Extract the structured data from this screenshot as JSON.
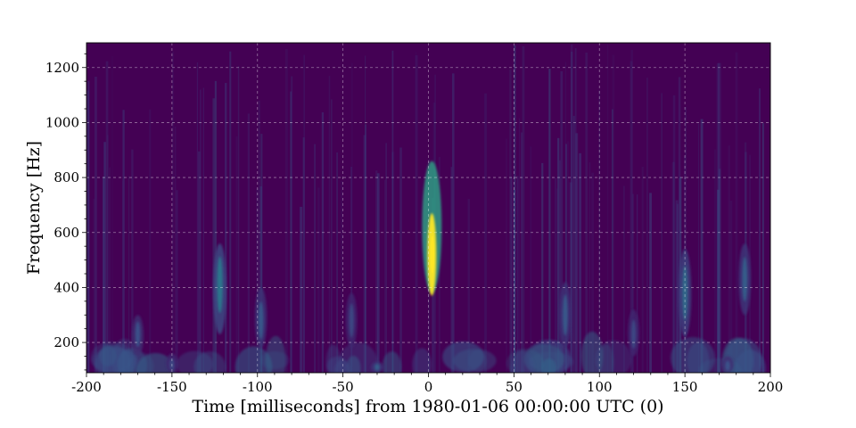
{
  "chart_data": {
    "type": "heatmap",
    "title": "",
    "xlabel": "Time [milliseconds] from 1980-01-06 00:00:00 UTC (0)",
    "ylabel": "Frequency [Hz]",
    "xlim": [
      -200,
      200
    ],
    "ylim": [
      90,
      1290
    ],
    "x_ticks": [
      "-200",
      "-150",
      "-100",
      "-50",
      "0",
      "50",
      "100",
      "150",
      "200"
    ],
    "y_ticks": [
      "200",
      "400",
      "600",
      "800",
      "1000",
      "1200"
    ],
    "grid": true,
    "colormap": "viridis",
    "background_color": "#440154",
    "features": [
      {
        "time_ms": 2,
        "freq_low_hz": 380,
        "freq_high_hz": 860,
        "peak_freq_hz": 520,
        "intensity": 1.0
      },
      {
        "time_ms": -122,
        "freq_low_hz": 230,
        "freq_high_hz": 560,
        "peak_freq_hz": 410,
        "intensity": 0.4
      },
      {
        "time_ms": 150,
        "freq_low_hz": 220,
        "freq_high_hz": 540,
        "peak_freq_hz": 380,
        "intensity": 0.35
      },
      {
        "time_ms": -30,
        "freq_low_hz": 90,
        "freq_high_hz": 130,
        "peak_freq_hz": 110,
        "intensity": 0.3
      },
      {
        "time_ms": 185,
        "freq_low_hz": 300,
        "freq_high_hz": 560,
        "peak_freq_hz": 430,
        "intensity": 0.3
      },
      {
        "time_ms": -98,
        "freq_low_hz": 180,
        "freq_high_hz": 400,
        "peak_freq_hz": 280,
        "intensity": 0.28
      },
      {
        "time_ms": 80,
        "freq_low_hz": 180,
        "freq_high_hz": 420,
        "peak_freq_hz": 300,
        "intensity": 0.28
      },
      {
        "time_ms": -170,
        "freq_low_hz": 150,
        "freq_high_hz": 300,
        "peak_freq_hz": 230,
        "intensity": 0.25
      },
      {
        "time_ms": -45,
        "freq_low_hz": 180,
        "freq_high_hz": 380,
        "peak_freq_hz": 280,
        "intensity": 0.22
      },
      {
        "time_ms": 120,
        "freq_low_hz": 150,
        "freq_high_hz": 320,
        "peak_freq_hz": 230,
        "intensity": 0.22
      },
      {
        "time_ms": -150,
        "freq_low_hz": 90,
        "freq_high_hz": 160,
        "peak_freq_hz": 120,
        "intensity": 0.22
      },
      {
        "time_ms": 175,
        "freq_low_hz": 90,
        "freq_high_hz": 150,
        "peak_freq_hz": 115,
        "intensity": 0.25
      }
    ]
  }
}
